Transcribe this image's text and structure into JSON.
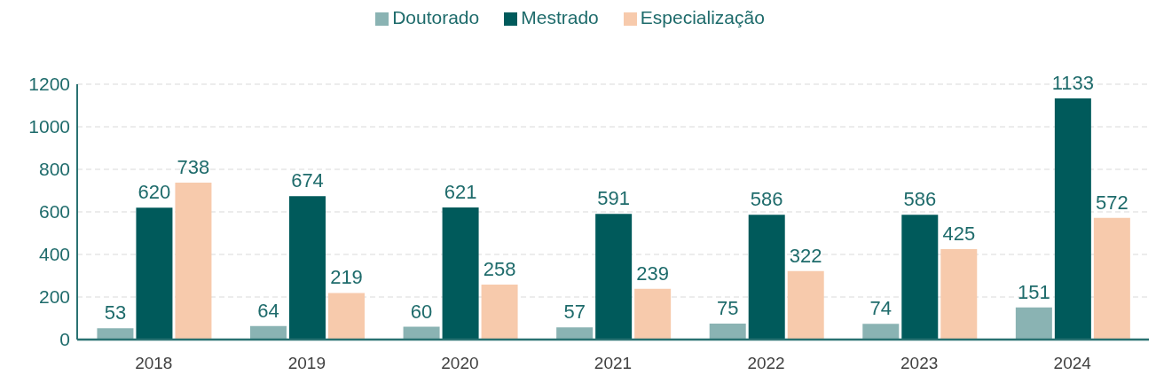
{
  "chart_data": {
    "type": "bar",
    "categories": [
      "2018",
      "2019",
      "2020",
      "2021",
      "2022",
      "2023",
      "2024"
    ],
    "series": [
      {
        "name": "Doutorado",
        "color": "#8ab3b3",
        "values": [
          53,
          64,
          60,
          57,
          75,
          74,
          151
        ]
      },
      {
        "name": "Mestrado",
        "color": "#005a5b",
        "values": [
          620,
          674,
          621,
          591,
          586,
          586,
          1133
        ]
      },
      {
        "name": "Especialização",
        "color": "#f7caac",
        "values": [
          738,
          219,
          258,
          239,
          322,
          425,
          572
        ]
      }
    ],
    "ylim": [
      0,
      1200
    ],
    "yticks": [
      0,
      200,
      400,
      600,
      800,
      1000,
      1200
    ],
    "grid": "y",
    "legend": "top",
    "data_labels": true
  }
}
